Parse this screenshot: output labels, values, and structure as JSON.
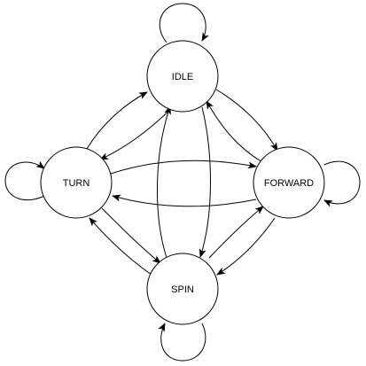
{
  "diagram": {
    "type": "state-machine",
    "colors": {
      "stroke": "#000000",
      "fill": "#ffffff",
      "text": "#000000"
    },
    "states": {
      "idle": {
        "label": "IDLE"
      },
      "turn": {
        "label": "TURN"
      },
      "forward": {
        "label": "FORWARD"
      },
      "spin": {
        "label": "SPIN"
      }
    },
    "transitions": [
      {
        "from": "IDLE",
        "to": "IDLE"
      },
      {
        "from": "TURN",
        "to": "TURN"
      },
      {
        "from": "FORWARD",
        "to": "FORWARD"
      },
      {
        "from": "SPIN",
        "to": "SPIN"
      },
      {
        "from": "TURN",
        "to": "IDLE"
      },
      {
        "from": "IDLE",
        "to": "TURN"
      },
      {
        "from": "IDLE",
        "to": "FORWARD"
      },
      {
        "from": "FORWARD",
        "to": "IDLE"
      },
      {
        "from": "TURN",
        "to": "FORWARD"
      },
      {
        "from": "FORWARD",
        "to": "TURN"
      },
      {
        "from": "SPIN",
        "to": "IDLE"
      },
      {
        "from": "IDLE",
        "to": "SPIN"
      },
      {
        "from": "TURN",
        "to": "SPIN"
      },
      {
        "from": "SPIN",
        "to": "TURN"
      },
      {
        "from": "SPIN",
        "to": "FORWARD"
      },
      {
        "from": "FORWARD",
        "to": "SPIN"
      }
    ]
  }
}
